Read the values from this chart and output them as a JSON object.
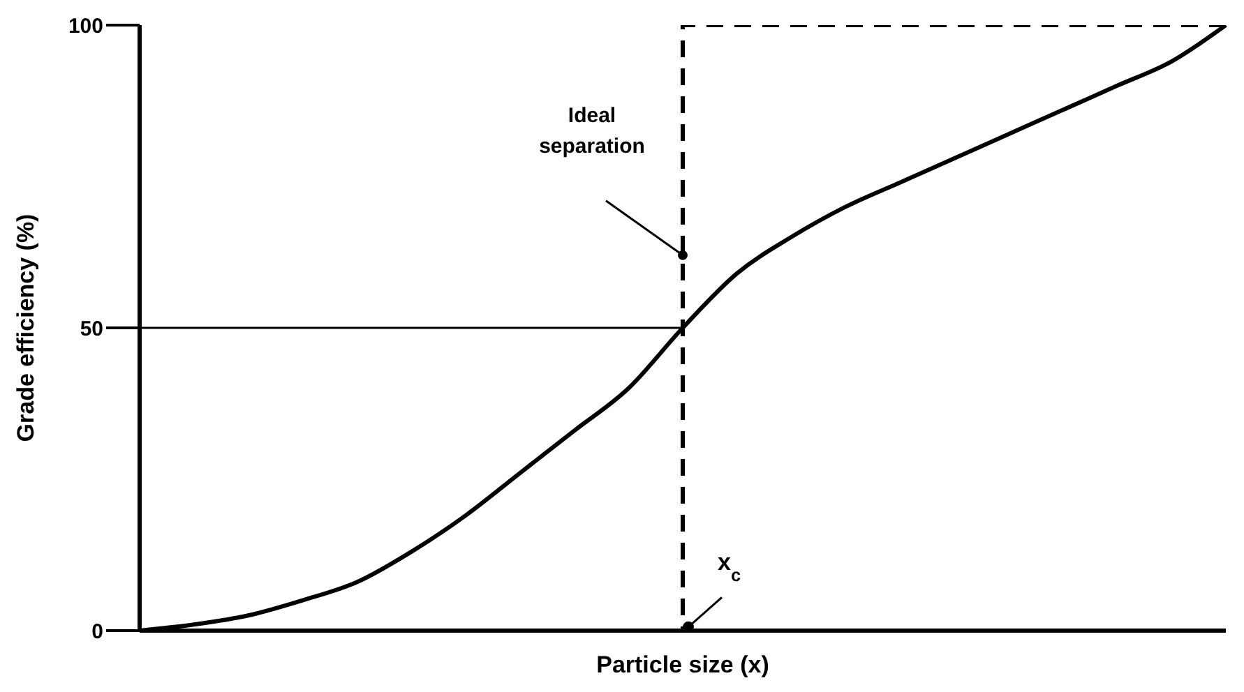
{
  "chart_data": {
    "type": "line",
    "xlabel": "Particle size (x)",
    "ylabel": "Grade efficiency (%)",
    "categories": [
      null,
      null,
      null,
      null,
      null,
      null,
      null,
      null,
      null,
      null,
      null,
      null,
      null,
      null,
      null,
      null,
      null,
      null,
      null,
      null,
      null
    ],
    "series": [
      {
        "color": "#000000",
        "line_style": "solid",
        "values": [
          0,
          1,
          2.5,
          5,
          8,
          13,
          19,
          26,
          33,
          40,
          50,
          59,
          65,
          70,
          74,
          78,
          82,
          86,
          90,
          94,
          100
        ]
      },
      {
        "type": "step",
        "color": "#000000",
        "line_style": "dashed",
        "values": [
          0,
          0,
          0,
          0,
          0,
          0,
          0,
          0,
          0,
          0,
          0,
          100,
          100,
          100,
          100,
          100,
          100,
          100,
          100,
          100,
          100
        ]
      },
      {
        "color": "#000000",
        "line_style": "solid",
        "values": [
          50,
          50,
          50,
          50,
          50,
          50,
          50,
          50,
          50,
          50,
          50,
          null,
          null,
          null,
          null,
          null,
          null,
          null,
          null,
          null,
          null
        ]
      }
    ],
    "ylim": [
      0,
      100
    ],
    "yticks": [
      0,
      50,
      100
    ],
    "marker": "none",
    "tick_labels": "y",
    "annotations": [
      "Ideal separation",
      "x$_{c}$"
    ]
  }
}
